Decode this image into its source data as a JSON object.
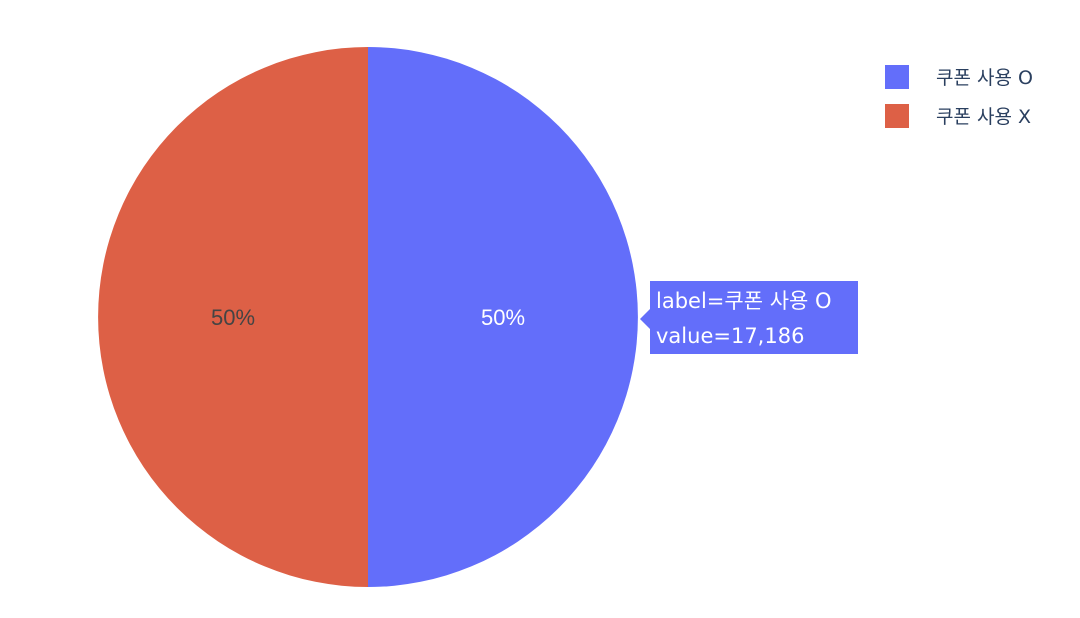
{
  "chart_data": {
    "type": "pie",
    "labels": [
      "쿠폰 사용 O",
      "쿠폰 사용 X"
    ],
    "values": [
      17186,
      17186
    ],
    "colors": [
      "#636efa",
      "#dd6046"
    ],
    "slice_text": [
      "50%",
      "50%"
    ],
    "slice_text_colors": [
      "#ffffff",
      "#444444"
    ],
    "legend": {
      "placement": "top-right",
      "items": [
        {
          "label": "쿠폰 사용 O",
          "color": "#636efa"
        },
        {
          "label": "쿠폰 사용 X",
          "color": "#dd6046"
        }
      ]
    },
    "hover": {
      "slice_index": 0,
      "label_line": "label=쿠폰 사용 O",
      "value_line": "value=17,186",
      "color": "#636efa"
    }
  }
}
